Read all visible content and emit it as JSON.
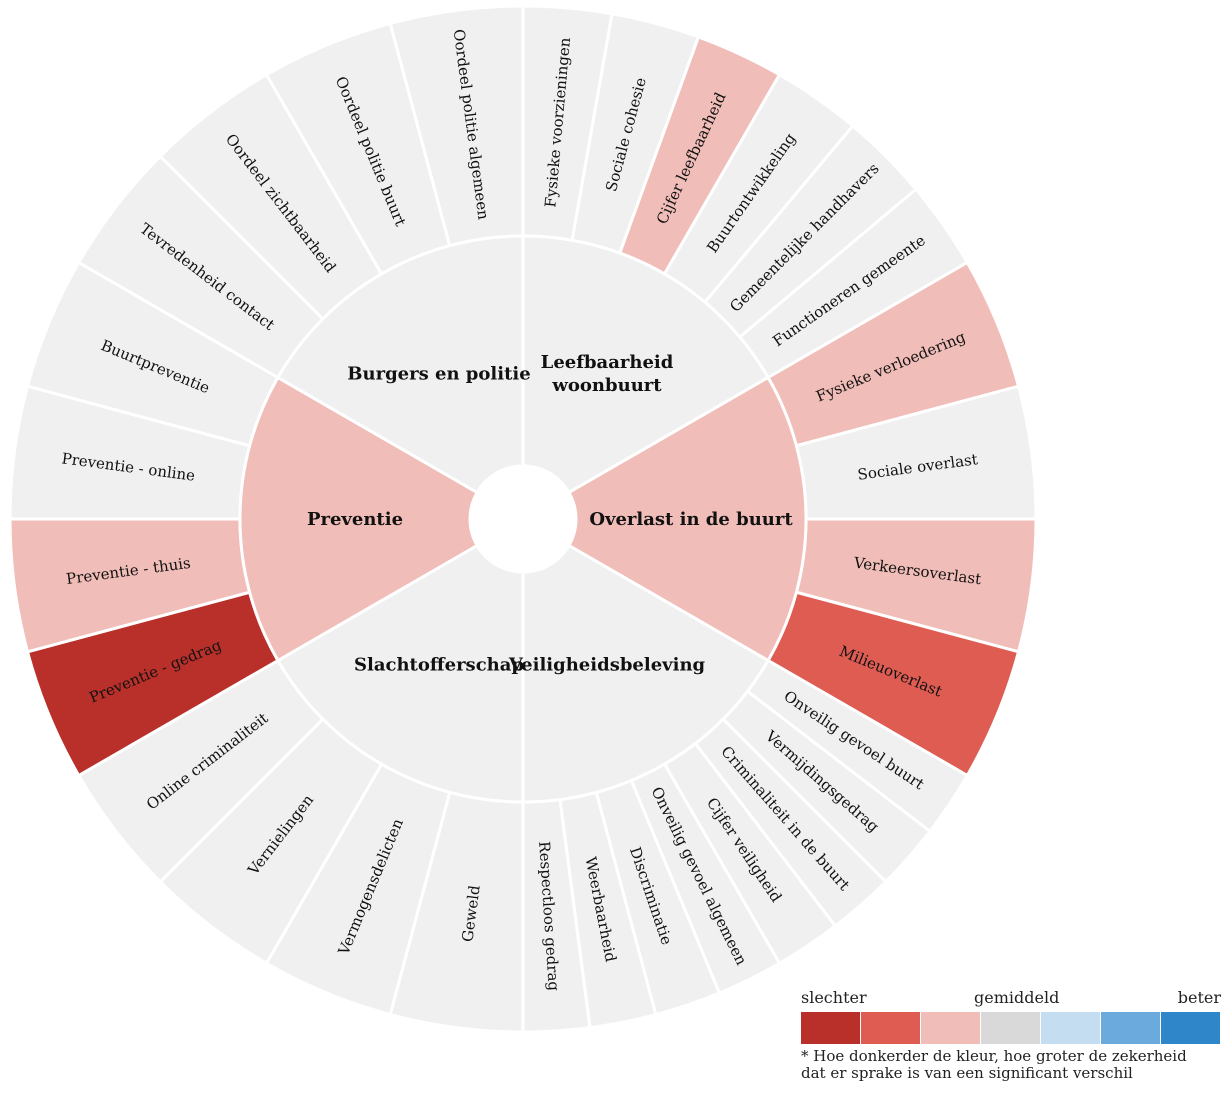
{
  "chart_data": {
    "type": "sunburst",
    "colors": {
      "very_worse": "#b9302a",
      "worse": "#de5c52",
      "slightly_worse": "#f0bdb8",
      "average": "#f0f0f0",
      "slightly_better": "#c5ddf0",
      "better": "#6aaadc",
      "very_better": "#2f86c8"
    },
    "categories": [
      {
        "label": "Leefbaarheid woonbuurt",
        "label_lines": [
          "Leefbaarheid",
          "woonbuurt"
        ],
        "rating": "average",
        "items": [
          {
            "label": "Fysieke voorzieningen",
            "rating": "average"
          },
          {
            "label": "Sociale cohesie",
            "rating": "average"
          },
          {
            "label": "Cijfer leefbaarheid",
            "rating": "slightly_worse"
          },
          {
            "label": "Buurtontwikkeling",
            "rating": "average"
          },
          {
            "label": "Gemeentelijke handhavers",
            "rating": "average"
          },
          {
            "label": "Functioneren gemeente",
            "rating": "average"
          }
        ]
      },
      {
        "label": "Overlast in de buurt",
        "label_lines": [
          "Overlast in de buurt"
        ],
        "rating": "slightly_worse",
        "items": [
          {
            "label": "Fysieke verloedering",
            "rating": "slightly_worse"
          },
          {
            "label": "Sociale overlast",
            "rating": "average"
          },
          {
            "label": "Verkeersoverlast",
            "rating": "slightly_worse"
          },
          {
            "label": "Milieuoverlast",
            "rating": "worse"
          }
        ]
      },
      {
        "label": "Veiligheidsbeleving",
        "label_lines": [
          "Veiligheidsbeleving"
        ],
        "rating": "average",
        "items": [
          {
            "label": "Onveilig gevoel buurt",
            "rating": "average"
          },
          {
            "label": "Vermijdingsgedrag",
            "rating": "average"
          },
          {
            "label": "Criminaliteit in de buurt",
            "rating": "average"
          },
          {
            "label": "Cijfer veiligheid",
            "rating": "average"
          },
          {
            "label": "Onveilig gevoel algemeen",
            "rating": "average"
          },
          {
            "label": "Discriminatie",
            "rating": "average"
          },
          {
            "label": "Weerbaarheid",
            "rating": "average"
          },
          {
            "label": "Respectloos gedrag",
            "rating": "average"
          }
        ]
      },
      {
        "label": "Slachtofferschap",
        "label_lines": [
          "Slachtofferschap"
        ],
        "rating": "average",
        "items": [
          {
            "label": "Geweld",
            "rating": "average"
          },
          {
            "label": "Vermogensdelicten",
            "rating": "average"
          },
          {
            "label": "Vernielingen",
            "rating": "average"
          },
          {
            "label": "Online criminaliteit",
            "rating": "average"
          }
        ]
      },
      {
        "label": "Preventie",
        "label_lines": [
          "Preventie"
        ],
        "rating": "slightly_worse",
        "items": [
          {
            "label": "Preventie - gedrag",
            "rating": "very_worse"
          },
          {
            "label": "Preventie - thuis",
            "rating": "slightly_worse"
          },
          {
            "label": "Preventie - online",
            "rating": "average"
          },
          {
            "label": "Buurtpreventie",
            "rating": "average"
          }
        ]
      },
      {
        "label": "Burgers en politie",
        "label_lines": [
          "Burgers en politie"
        ],
        "rating": "average",
        "items": [
          {
            "label": "Tevredenheid contact",
            "rating": "average"
          },
          {
            "label": "Oordeel zichtbaarheid",
            "rating": "average"
          },
          {
            "label": "Oordeel politie buurt",
            "rating": "average"
          },
          {
            "label": "Oordeel politie algemeen",
            "rating": "average"
          }
        ]
      }
    ]
  },
  "legend": {
    "label_worse": "slechter",
    "label_average": "gemiddeld",
    "label_better": "beter",
    "scale_colors": [
      "#b9302a",
      "#de5c52",
      "#f0bdb8",
      "#d9d9d9",
      "#c5ddf0",
      "#6aaadc",
      "#2f86c8"
    ],
    "note_line1": "* Hoe donkerder de kleur, hoe groter de zekerheid",
    "note_line2": "dat er sprake is van een significant verschil"
  }
}
